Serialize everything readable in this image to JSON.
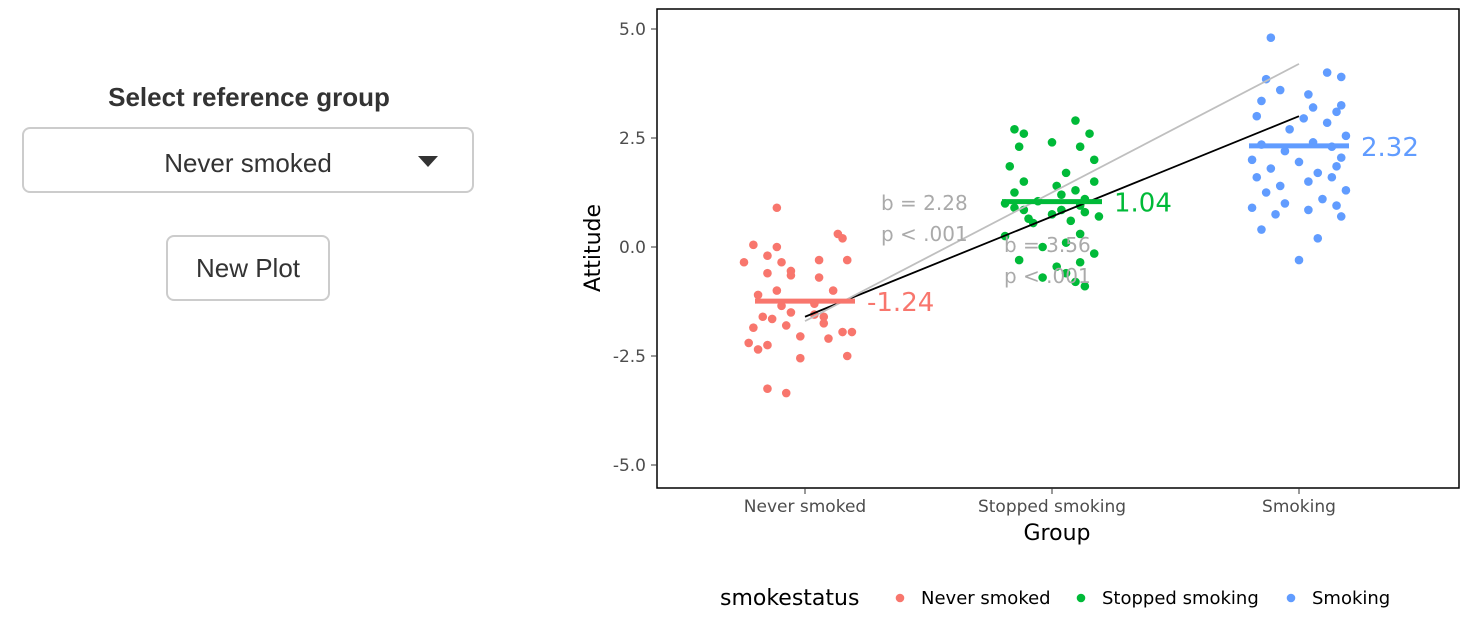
{
  "sidebar": {
    "label": "Select reference group",
    "selected": "Never smoked",
    "options": [
      "Never smoked"
    ],
    "button_label": "New Plot"
  },
  "colors": {
    "never": "#F8766D",
    "stopped": "#00BA38",
    "smoking": "#619CFF",
    "gray_line": "#bfbfbf",
    "gray_text": "#aaaaaa"
  },
  "chart_data": {
    "type": "scatter",
    "xlabel": "Group",
    "ylabel": "Attitude",
    "categories": [
      "Never smoked",
      "Stopped smoking",
      "Smoking"
    ],
    "ylim": [
      -5.5,
      5.5
    ],
    "yticks": [
      "5.0",
      "2.5",
      "0.0",
      "-2.5",
      "-5.0"
    ],
    "ytick_values": [
      5.0,
      2.5,
      0.0,
      -2.5,
      -5.0
    ],
    "grid": false,
    "legend": {
      "title": "smokestatus",
      "position": "bottom",
      "entries": [
        "Never smoked",
        "Stopped smoking",
        "Smoking"
      ]
    },
    "means": [
      -1.24,
      1.04,
      2.32
    ],
    "mean_labels": [
      "-1.24",
      "1.04",
      "2.32"
    ],
    "regression_lines": [
      {
        "color": "black",
        "x": [
          1,
          3
        ],
        "y": [
          -1.6,
          3.0
        ]
      },
      {
        "color": "gray",
        "x": [
          1,
          3
        ],
        "y": [
          -1.7,
          4.2
        ]
      }
    ],
    "annotations": [
      {
        "b": "b = 2.28",
        "p": "p < .001"
      },
      {
        "b": "b = 3.56",
        "p": "p < .001"
      }
    ],
    "series": [
      {
        "name": "Never smoked",
        "x": 1,
        "points": [
          [
            -0.06,
            0.9
          ],
          [
            0.07,
            0.3
          ],
          [
            0.08,
            0.2
          ],
          [
            -0.11,
            0.05
          ],
          [
            -0.06,
            0.0
          ],
          [
            -0.08,
            -0.2
          ],
          [
            0.03,
            -0.3
          ],
          [
            0.09,
            -0.3
          ],
          [
            -0.13,
            -0.35
          ],
          [
            -0.05,
            -0.35
          ],
          [
            -0.03,
            -0.55
          ],
          [
            -0.08,
            -0.6
          ],
          [
            -0.03,
            -0.65
          ],
          [
            0.03,
            -0.7
          ],
          [
            -0.06,
            -1.0
          ],
          [
            0.06,
            -1.0
          ],
          [
            -0.1,
            -1.1
          ],
          [
            0.02,
            -1.3
          ],
          [
            -0.05,
            -1.35
          ],
          [
            -0.03,
            -1.5
          ],
          [
            0.02,
            -1.55
          ],
          [
            -0.09,
            -1.6
          ],
          [
            0.04,
            -1.6
          ],
          [
            -0.07,
            -1.65
          ],
          [
            0.04,
            -1.75
          ],
          [
            -0.04,
            -1.8
          ],
          [
            -0.11,
            -1.85
          ],
          [
            0.1,
            -1.95
          ],
          [
            0.08,
            -1.95
          ],
          [
            -0.01,
            -2.05
          ],
          [
            0.05,
            -2.1
          ],
          [
            -0.12,
            -2.2
          ],
          [
            -0.08,
            -2.25
          ],
          [
            -0.1,
            -2.35
          ],
          [
            0.09,
            -2.5
          ],
          [
            -0.01,
            -2.55
          ],
          [
            -0.08,
            -3.25
          ],
          [
            -0.04,
            -3.35
          ]
        ]
      },
      {
        "name": "Stopped smoking",
        "x": 2,
        "points": [
          [
            0.05,
            2.9
          ],
          [
            -0.08,
            2.7
          ],
          [
            -0.06,
            2.6
          ],
          [
            0.08,
            2.6
          ],
          [
            0.0,
            2.4
          ],
          [
            -0.07,
            2.3
          ],
          [
            0.06,
            2.3
          ],
          [
            0.09,
            2.0
          ],
          [
            -0.09,
            1.85
          ],
          [
            0.03,
            1.7
          ],
          [
            0.09,
            1.5
          ],
          [
            -0.06,
            1.5
          ],
          [
            0.01,
            1.4
          ],
          [
            0.05,
            1.3
          ],
          [
            -0.08,
            1.25
          ],
          [
            0.02,
            1.2
          ],
          [
            0.07,
            1.1
          ],
          [
            -0.03,
            1.05
          ],
          [
            -0.1,
            1.0
          ],
          [
            0.06,
            0.95
          ],
          [
            -0.08,
            0.9
          ],
          [
            0.02,
            0.85
          ],
          [
            -0.06,
            0.85
          ],
          [
            0.07,
            0.8
          ],
          [
            0.0,
            0.75
          ],
          [
            0.1,
            0.7
          ],
          [
            -0.05,
            0.65
          ],
          [
            0.04,
            0.6
          ],
          [
            -0.04,
            0.55
          ],
          [
            0.06,
            0.3
          ],
          [
            -0.1,
            0.25
          ],
          [
            0.03,
            0.1
          ],
          [
            -0.02,
            0.0
          ],
          [
            0.09,
            -0.15
          ],
          [
            -0.07,
            -0.3
          ],
          [
            0.06,
            -0.35
          ],
          [
            0.01,
            -0.45
          ],
          [
            0.03,
            -0.6
          ],
          [
            -0.02,
            -0.7
          ],
          [
            0.05,
            -0.8
          ],
          [
            0.07,
            -0.9
          ]
        ]
      },
      {
        "name": "Smoking",
        "x": 3,
        "points": [
          [
            -0.06,
            4.8
          ],
          [
            -0.07,
            3.85
          ],
          [
            0.06,
            4.0
          ],
          [
            0.09,
            3.9
          ],
          [
            -0.04,
            3.6
          ],
          [
            0.02,
            3.5
          ],
          [
            -0.08,
            3.35
          ],
          [
            0.09,
            3.25
          ],
          [
            0.03,
            3.2
          ],
          [
            0.08,
            3.1
          ],
          [
            -0.09,
            3.0
          ],
          [
            0.01,
            2.95
          ],
          [
            0.06,
            2.85
          ],
          [
            -0.02,
            2.7
          ],
          [
            0.1,
            2.55
          ],
          [
            0.03,
            2.4
          ],
          [
            -0.08,
            2.35
          ],
          [
            0.07,
            2.3
          ],
          [
            -0.03,
            2.2
          ],
          [
            0.09,
            2.05
          ],
          [
            -0.1,
            2.0
          ],
          [
            0.0,
            1.95
          ],
          [
            0.08,
            1.85
          ],
          [
            -0.06,
            1.8
          ],
          [
            0.04,
            1.7
          ],
          [
            0.07,
            1.6
          ],
          [
            -0.09,
            1.6
          ],
          [
            0.02,
            1.5
          ],
          [
            -0.04,
            1.4
          ],
          [
            0.1,
            1.3
          ],
          [
            -0.07,
            1.25
          ],
          [
            0.05,
            1.1
          ],
          [
            -0.03,
            1.0
          ],
          [
            0.08,
            0.95
          ],
          [
            -0.1,
            0.9
          ],
          [
            0.02,
            0.85
          ],
          [
            -0.05,
            0.75
          ],
          [
            0.09,
            0.7
          ],
          [
            -0.08,
            0.4
          ],
          [
            0.04,
            0.2
          ],
          [
            0.0,
            -0.3
          ]
        ]
      }
    ]
  }
}
